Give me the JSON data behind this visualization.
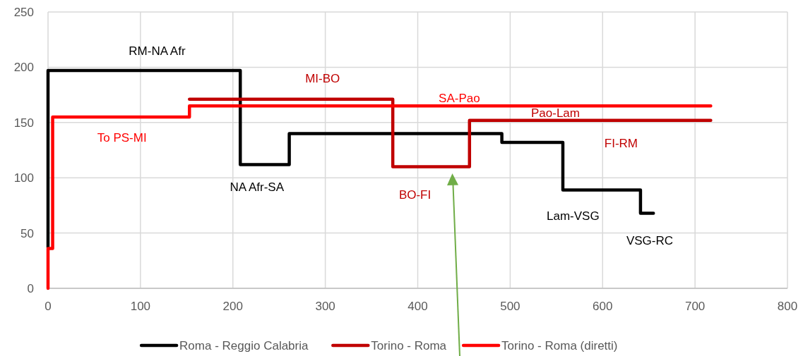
{
  "chart_data": {
    "type": "step",
    "xlim": [
      0,
      800
    ],
    "xticks": [
      0,
      100,
      200,
      300,
      400,
      500,
      600,
      700,
      800
    ],
    "ylim": [
      0,
      250
    ],
    "yticks": [
      0,
      50,
      100,
      150,
      200,
      250
    ],
    "grid": true,
    "legend": "bottom",
    "line_style": "solid",
    "marker": "none",
    "series": [
      {
        "name": "Roma - Reggio Calabria",
        "color": "#000000",
        "x": [
          0,
          0,
          208,
          261,
          491,
          557,
          641,
          655
        ],
        "values": [
          37,
          197,
          112,
          140,
          132,
          89,
          68,
          68
        ]
      },
      {
        "name": "Torino - Roma",
        "color": "#c00000",
        "x": [
          153,
          373,
          456,
          717
        ],
        "values": [
          171,
          110,
          152,
          152
        ]
      },
      {
        "name": "Torino - Roma (diretti)",
        "color": "#ff0000",
        "x": [
          0,
          0,
          5,
          153,
          717
        ],
        "values": [
          0,
          36,
          155,
          165,
          165
        ]
      }
    ],
    "annotations": [
      {
        "text": "RM-NA Afr",
        "x": 118,
        "y": 197
      },
      {
        "text": "To PS-MI",
        "x": 80,
        "y": 155
      },
      {
        "text": "NA Afr-SA",
        "x": 226,
        "y": 112
      },
      {
        "text": "MI-BO",
        "x": 297,
        "y": 171
      },
      {
        "text": "SA-Pao",
        "x": 445,
        "y": 165
      },
      {
        "text": "Pao-Lam",
        "x": 549,
        "y": 152
      },
      {
        "text": "FI-RM",
        "x": 620,
        "y": 152
      },
      {
        "text": "BO-FI",
        "x": 397,
        "y": 110
      },
      {
        "text": "Lam-VSG",
        "x": 568,
        "y": 89
      },
      {
        "text": "VSG-RC",
        "x": 651,
        "y": 68
      }
    ]
  }
}
